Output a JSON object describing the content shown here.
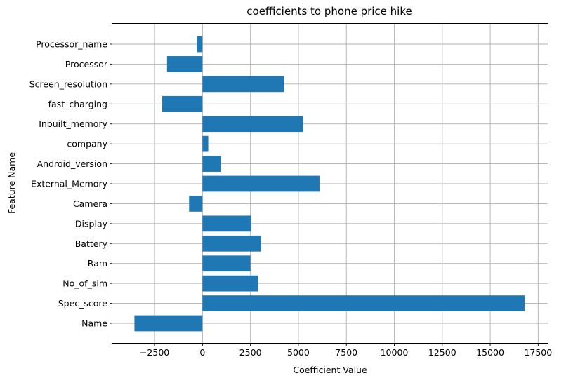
{
  "chart_data": {
    "type": "bar",
    "orientation": "horizontal",
    "title": "coefficients to phone price hike",
    "xlabel": "Coefficient Value",
    "ylabel": "Feature Name",
    "xlim": [
      -4700,
      18000
    ],
    "xticks": [
      -2500,
      0,
      2500,
      5000,
      7500,
      10000,
      12500,
      15000,
      17500
    ],
    "xtick_labels": [
      "−2500",
      "0",
      "2500",
      "5000",
      "7500",
      "10000",
      "12500",
      "15000",
      "17500"
    ],
    "grid": true,
    "bar_color": "#1f77b4",
    "categories": [
      "Name",
      "Spec_score",
      "No_of_sim",
      "Ram",
      "Battery",
      "Display",
      "Camera",
      "External_Memory",
      "Android_version",
      "company",
      "Inbuilt_memory",
      "fast_charging",
      "Screen_resolution",
      "Processor",
      "Processor_name"
    ],
    "values": [
      -3550,
      16800,
      2900,
      2500,
      3050,
      2550,
      -700,
      6100,
      950,
      300,
      5250,
      -2100,
      4250,
      -1850,
      -300
    ]
  }
}
